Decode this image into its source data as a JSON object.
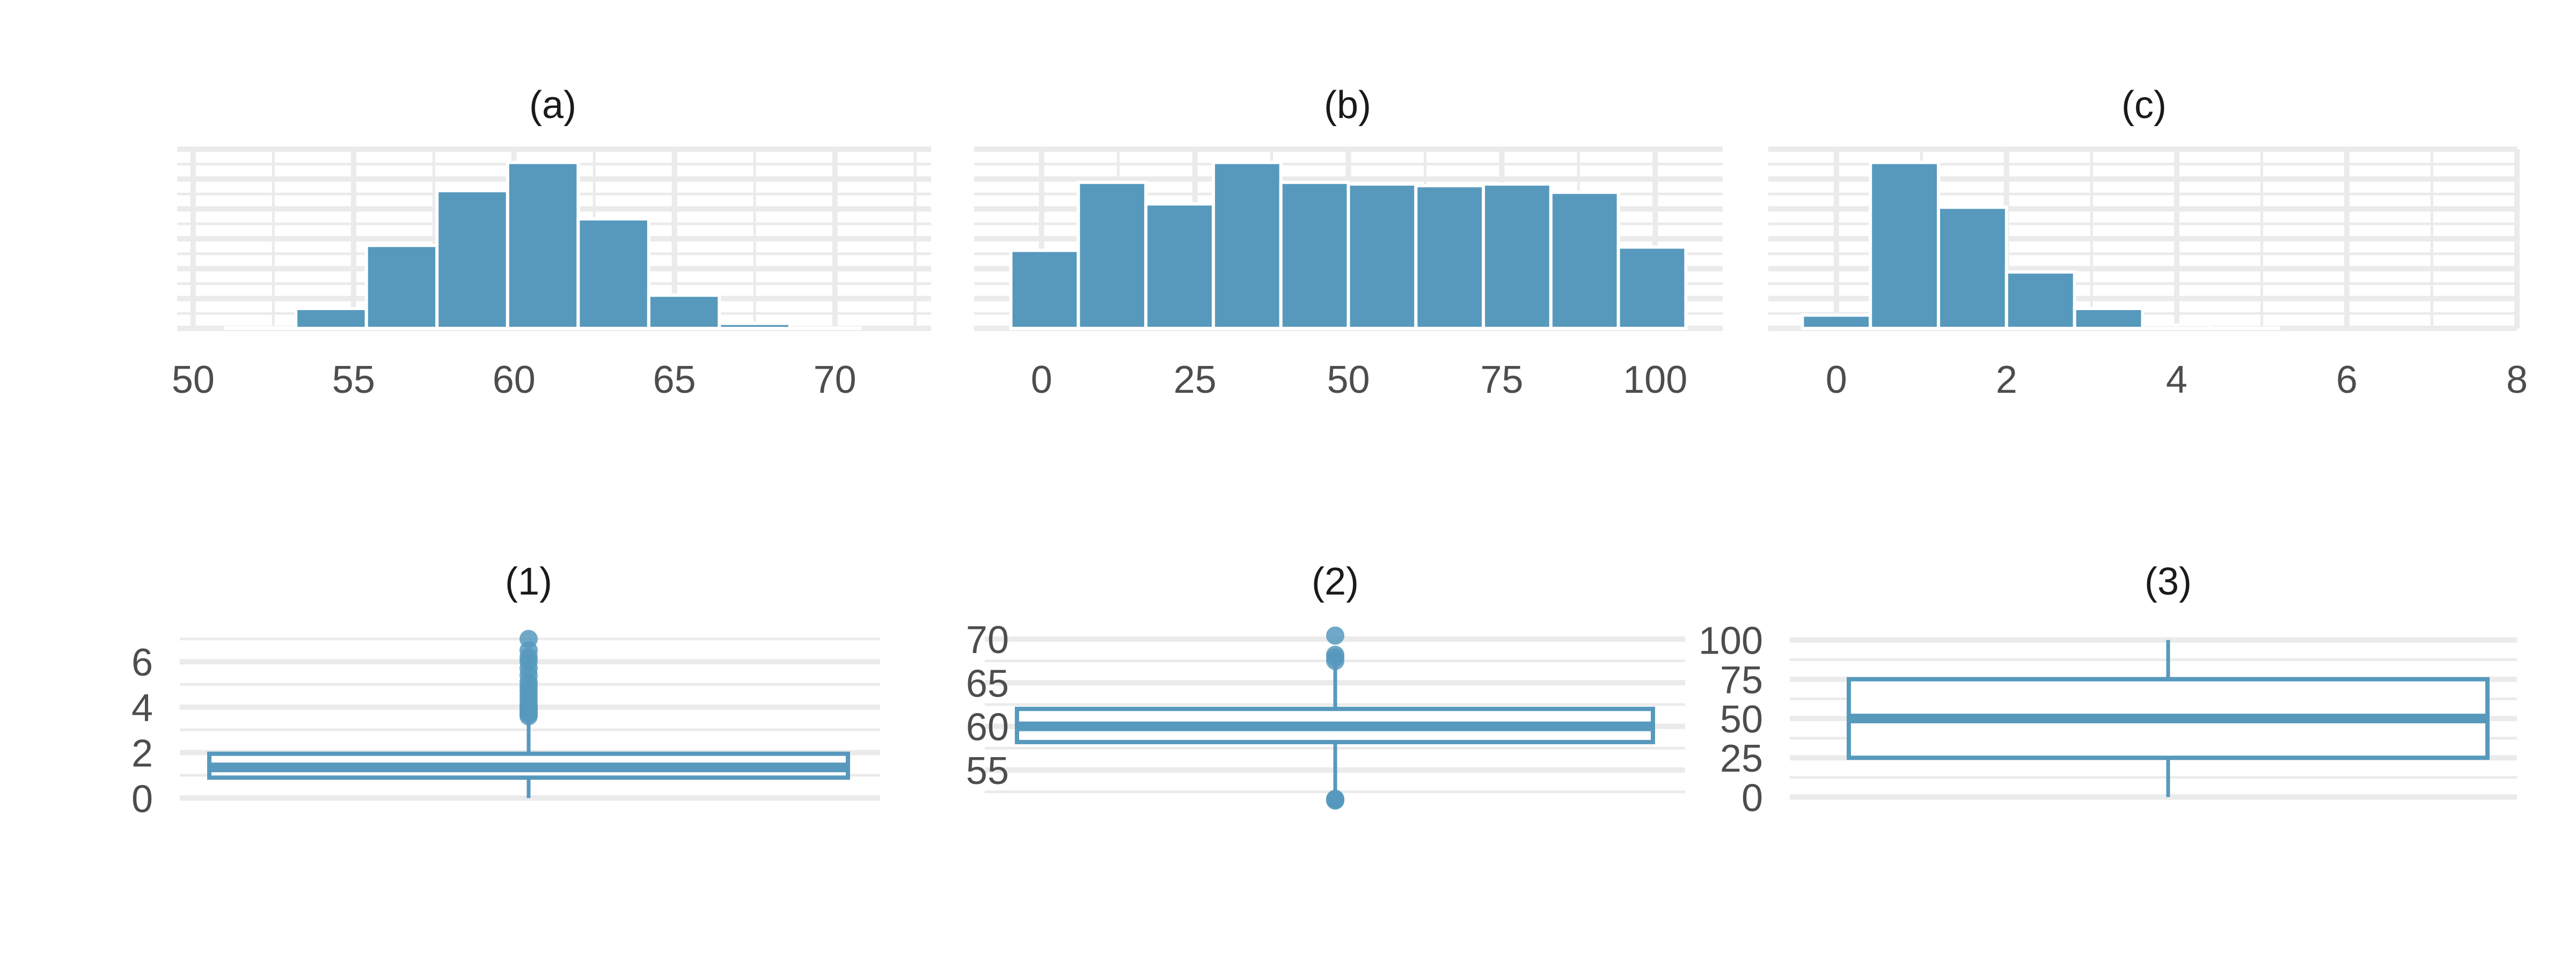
{
  "colors": {
    "fill": "#5799BD",
    "box_line": "#5799BD",
    "grid": "#EBEBEB",
    "bar_edge": "#FFFFFF"
  },
  "chart_data": [
    {
      "id": "a",
      "type": "bar",
      "title": "(a)",
      "xlabel": "",
      "ylabel": "",
      "x_ticks": [
        50,
        55,
        60,
        65,
        70
      ],
      "xlim": [
        49.5,
        73
      ],
      "ylim": [
        0,
        1.08
      ],
      "grid": true,
      "bins": [
        {
          "x0": 51,
          "x1": 53.2,
          "value": 0.003
        },
        {
          "x0": 53.2,
          "x1": 55.4,
          "value": 0.12
        },
        {
          "x0": 55.4,
          "x1": 57.6,
          "value": 0.5
        },
        {
          "x0": 57.6,
          "x1": 59.8,
          "value": 0.83
        },
        {
          "x0": 59.8,
          "x1": 62.0,
          "value": 1.0
        },
        {
          "x0": 62.0,
          "x1": 64.2,
          "value": 0.66
        },
        {
          "x0": 64.2,
          "x1": 66.4,
          "value": 0.2
        },
        {
          "x0": 66.4,
          "x1": 68.6,
          "value": 0.03
        },
        {
          "x0": 68.6,
          "x1": 70.8,
          "value": 0.002
        }
      ]
    },
    {
      "id": "b",
      "type": "bar",
      "title": "(b)",
      "xlabel": "",
      "ylabel": "",
      "x_ticks": [
        0,
        25,
        50,
        75,
        100
      ],
      "xlim": [
        -11,
        111
      ],
      "ylim": [
        0,
        1.08
      ],
      "grid": true,
      "bins": [
        {
          "x0": -5,
          "x1": 6,
          "value": 0.47
        },
        {
          "x0": 6,
          "x1": 17,
          "value": 0.88
        },
        {
          "x0": 17,
          "x1": 28,
          "value": 0.75
        },
        {
          "x0": 28,
          "x1": 39,
          "value": 1.0
        },
        {
          "x0": 39,
          "x1": 50,
          "value": 0.88
        },
        {
          "x0": 50,
          "x1": 61,
          "value": 0.87
        },
        {
          "x0": 61,
          "x1": 72,
          "value": 0.86
        },
        {
          "x0": 72,
          "x1": 83,
          "value": 0.87
        },
        {
          "x0": 83,
          "x1": 94,
          "value": 0.82
        },
        {
          "x0": 94,
          "x1": 105,
          "value": 0.49
        }
      ]
    },
    {
      "id": "c",
      "type": "bar",
      "title": "(c)",
      "xlabel": "",
      "ylabel": "",
      "x_ticks": [
        0,
        2,
        4,
        6,
        8
      ],
      "xlim": [
        -0.8,
        8
      ],
      "ylim": [
        0,
        1.08
      ],
      "grid": true,
      "bins": [
        {
          "x0": -0.4,
          "x1": 0.4,
          "value": 0.08
        },
        {
          "x0": 0.4,
          "x1": 1.2,
          "value": 1.0
        },
        {
          "x0": 1.2,
          "x1": 2.0,
          "value": 0.73
        },
        {
          "x0": 2.0,
          "x1": 2.8,
          "value": 0.34
        },
        {
          "x0": 2.8,
          "x1": 3.6,
          "value": 0.12
        },
        {
          "x0": 3.6,
          "x1": 4.4,
          "value": 0.02
        },
        {
          "x0": 4.4,
          "x1": 5.2,
          "value": 0.002
        }
      ]
    },
    {
      "id": "1",
      "type": "box",
      "title": "(1)",
      "xlabel": "",
      "ylabel": "",
      "y_ticks": [
        0,
        2,
        4,
        6
      ],
      "ylim": [
        -0.3,
        7.3
      ],
      "grid": true,
      "box": {
        "min": 0,
        "q1": 0.9,
        "median": 1.35,
        "q3": 1.95,
        "upper_whisker": 3.55
      },
      "outliers": [
        3.6,
        3.7,
        3.8,
        3.9,
        4.0,
        4.1,
        4.3,
        4.5,
        4.7,
        4.9,
        5.1,
        5.4,
        5.7,
        6.0,
        6.2,
        6.5,
        7.0
      ]
    },
    {
      "id": "2",
      "type": "box",
      "title": "(2)",
      "xlabel": "",
      "ylabel": "",
      "y_ticks": [
        55,
        60,
        65,
        70
      ],
      "ylim": [
        51,
        70.8
      ],
      "grid": true,
      "box": {
        "lower_whisker": 51.9,
        "q1": 58.2,
        "median": 60.0,
        "q3": 62.0,
        "upper_whisker": 67.3
      },
      "outliers": [
        51.5,
        51.6,
        51.7,
        67.5,
        67.9,
        68.2,
        70.4
      ]
    },
    {
      "id": "3",
      "type": "box",
      "title": "(3)",
      "xlabel": "",
      "ylabel": "",
      "y_ticks": [
        0,
        25,
        50,
        75,
        100
      ],
      "ylim": [
        -5,
        105
      ],
      "grid": true,
      "box": {
        "min": 0,
        "q1": 25,
        "median": 50,
        "q3": 75,
        "max": 100
      },
      "outliers": []
    }
  ]
}
